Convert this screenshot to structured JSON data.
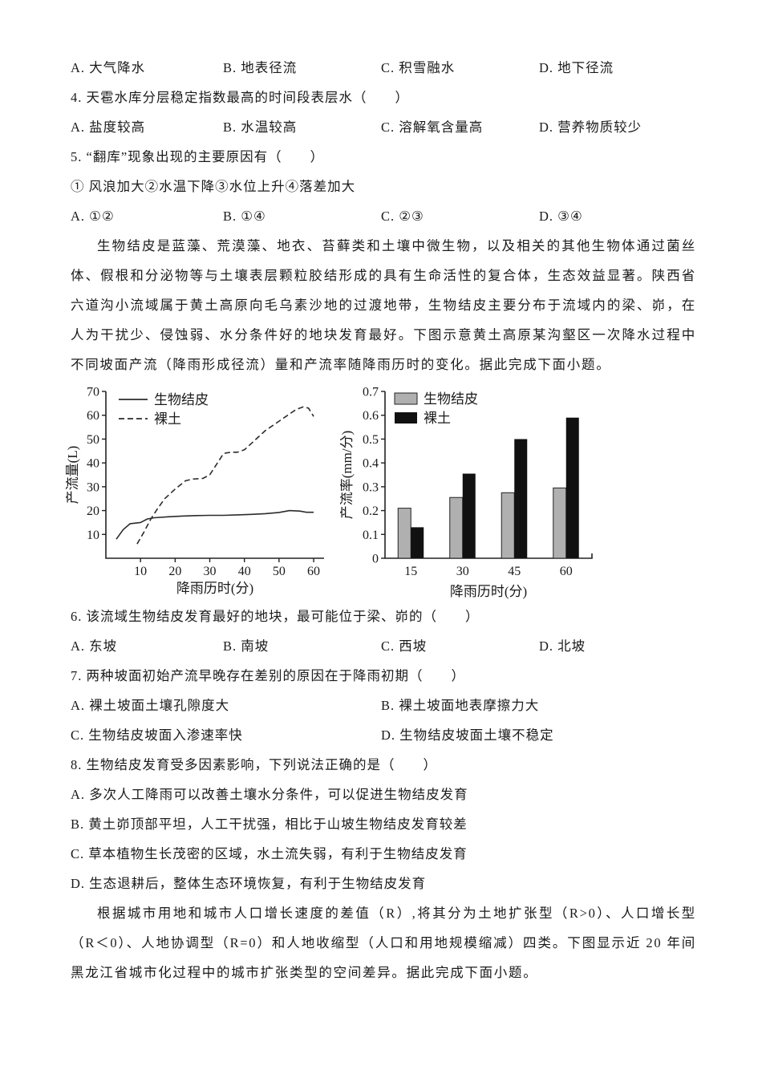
{
  "page": {
    "background": "#ffffff",
    "text_color": "#1a1a1a",
    "line_color": "#222222"
  },
  "rows": {
    "q3_options": [
      "A. 大气降水",
      "B. 地表径流",
      "C. 积雪融水",
      "D. 地下径流"
    ],
    "q4_text": "4. 天雹水库分层稳定指数最高的时间段表层水（　　）",
    "q4_options": [
      "A. 盐度较高",
      "B. 水温较高",
      "C. 溶解氧含量高",
      "D. 营养物质较少"
    ],
    "q5_text": "5. “翻库”现象出现的主要原因有（　　）",
    "q5_items": "① 风浪加大②水温下降③水位上升④落差加大",
    "q5_options": [
      "A. ①②",
      "B. ①④",
      "C. ②③",
      "D. ③④"
    ],
    "passage1": "生物结皮是蓝藻、荒漠藻、地衣、苔藓类和土壤中微生物，以及相关的其他生物体通过菌丝体、假根和分泌物等与土壤表层颗粒胶结形成的具有生命活性的复合体，生态效益显著。陕西省六道沟小流域属于黄土高原向毛乌素沙地的过渡地带，生物结皮主要分布于流域内的梁、峁，在人为干扰少、侵蚀弱、水分条件好的地块发育最好。下图示意黄土高原某沟壑区一次降水过程中不同坡面产流（降雨形成径流）量和产流率随降雨历时的变化。据此完成下面小题。",
    "q6_text": "6. 该流域生物结皮发育最好的地块，最可能位于梁、峁的（　　）",
    "q6_options": [
      "A. 东坡",
      "B. 南坡",
      "C. 西坡",
      "D. 北坡"
    ],
    "q7_text": "7. 两种坡面初始产流早晚存在差别的原因在于降雨初期（　　）",
    "q7_options": [
      "A. 裸土坡面土壤孔隙度大",
      "B. 裸土坡面地表摩擦力大",
      "C. 生物结皮坡面入渗速率快",
      "D. 生物结皮坡面土壤不稳定"
    ],
    "q8_text": "8. 生物结皮发育受多因素影响，下列说法正确的是（　　）",
    "q8_options": [
      "A. 多次人工降雨可以改善土壤水分条件，可以促进生物结皮发育",
      "B. 黄土峁顶部平坦，人工干扰强，相比于山坡生物结皮发育较差",
      "C. 草本植物生长茂密的区域，水土流失弱，有利于生物结皮发育",
      "D. 生态退耕后，整体生态环境恢复，有利于生物结皮发育"
    ],
    "passage2": "根据城市用地和城市人口增长速度的差值（R）,将其分为土地扩张型（R>0）、人口增长型（R＜0）、人地协调型（R=0）和人地收缩型（人口和用地规模缩减）四类。下图显示近 20 年间黑龙江省城市化过程中的城市扩张类型的空间差异。据此完成下面小题。"
  },
  "chart_data": [
    {
      "type": "line",
      "title": "",
      "xlabel": "降雨历时(分)",
      "ylabel": "产流量(L)",
      "xlim": [
        0,
        63
      ],
      "ylim": [
        0,
        70
      ],
      "xticks": [
        10,
        20,
        30,
        40,
        50,
        60
      ],
      "yticks": [
        10,
        20,
        30,
        40,
        50,
        60,
        70
      ],
      "grid": false,
      "legend_position": "top-left",
      "series": [
        {
          "name": "生物结皮",
          "line_style": "solid",
          "color": "#2b2b2b",
          "x": [
            3,
            5,
            7,
            10,
            12,
            14,
            18,
            22,
            26,
            30,
            34,
            38,
            42,
            46,
            50,
            53,
            56,
            58,
            60
          ],
          "y": [
            8,
            12,
            14.5,
            15,
            16.5,
            17,
            17.4,
            17.7,
            17.9,
            18,
            18,
            18.2,
            18.4,
            18.7,
            19.2,
            20,
            19.8,
            19.3,
            19.3
          ]
        },
        {
          "name": "裸土",
          "line_style": "dashed",
          "color": "#2b2b2b",
          "x": [
            9,
            11,
            13,
            15,
            17,
            20,
            23,
            25,
            28,
            30,
            32,
            34,
            36,
            38,
            40,
            43,
            46,
            49,
            52,
            55,
            57,
            58.5,
            60
          ],
          "y": [
            6,
            11,
            16.5,
            21,
            25,
            29,
            32.5,
            33.2,
            33.5,
            35,
            39.5,
            44,
            44.5,
            44.5,
            45.5,
            49.5,
            53.5,
            56.5,
            59.5,
            62.5,
            63.5,
            63,
            59.5
          ]
        }
      ]
    },
    {
      "type": "bar",
      "title": "",
      "xlabel": "降雨历时(分)",
      "ylabel": "产流率(mm/分)",
      "categories": [
        "15",
        "30",
        "45",
        "60"
      ],
      "ylim": [
        0,
        0.7
      ],
      "yticks": [
        0,
        0.1,
        0.2,
        0.3,
        0.4,
        0.5,
        0.6,
        0.7
      ],
      "grid": false,
      "legend_position": "top-left",
      "series": [
        {
          "name": "生物结皮",
          "color": "#b0b0b0",
          "values": [
            0.21,
            0.255,
            0.275,
            0.295
          ]
        },
        {
          "name": "裸土",
          "color": "#111111",
          "values": [
            0.13,
            0.355,
            0.5,
            0.59
          ]
        }
      ]
    }
  ]
}
